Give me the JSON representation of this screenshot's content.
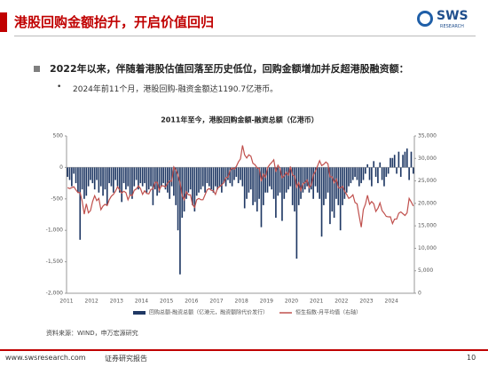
{
  "slide": {
    "title": "港股回购金额抬升，开启价值回归",
    "logo": "SWS",
    "logo_sub": "RESEARCH",
    "bullet": "2022年以来，伴随着港股估值回落至历史低位，回购金额增加并反超港股融资额：",
    "sub_bullet": "2024年前11个月，港股回购-融资金额达1190.7亿港币。",
    "source": "资料来源：WIND，申万宏源研究",
    "footer_url": "www.swsresearch.com",
    "footer_label": "证券研究报告",
    "page": "10"
  },
  "chart_data": {
    "type": "bar_line",
    "title": "2011年至今，港股回购金额-融资总额（亿港币）",
    "categories": [
      "2011",
      null,
      null,
      null,
      null,
      null,
      null,
      null,
      null,
      null,
      null,
      null,
      "2012",
      null,
      null,
      null,
      null,
      null,
      null,
      null,
      null,
      null,
      null,
      null,
      "2013",
      null,
      null,
      null,
      null,
      null,
      null,
      null,
      null,
      null,
      null,
      null,
      "2014",
      null,
      null,
      null,
      null,
      null,
      null,
      null,
      null,
      null,
      null,
      null,
      "2015",
      null,
      null,
      null,
      null,
      null,
      null,
      null,
      null,
      null,
      null,
      null,
      "2016",
      null,
      null,
      null,
      null,
      null,
      null,
      null,
      null,
      null,
      null,
      null,
      "2017",
      null,
      null,
      null,
      null,
      null,
      null,
      null,
      null,
      null,
      null,
      null,
      "2018",
      null,
      null,
      null,
      null,
      null,
      null,
      null,
      null,
      null,
      null,
      null,
      "2019",
      null,
      null,
      null,
      null,
      null,
      null,
      null,
      null,
      null,
      null,
      null,
      "2020",
      null,
      null,
      null,
      null,
      null,
      null,
      null,
      null,
      null,
      null,
      null,
      "2021",
      null,
      null,
      null,
      null,
      null,
      null,
      null,
      null,
      null,
      null,
      null,
      "2022",
      null,
      null,
      null,
      null,
      null,
      null,
      null,
      null,
      null,
      null,
      null,
      "2023",
      null,
      null,
      null,
      null,
      null,
      null,
      null,
      null,
      null,
      null,
      null,
      "2024",
      null,
      null,
      null,
      null,
      null,
      null,
      null,
      null,
      null,
      null
    ],
    "series": [
      {
        "name": "回购总额-融资总额（亿港元，融资额除代价发行）",
        "type": "bar",
        "color": "#1f3864",
        "values": [
          -150,
          -200,
          -300,
          -100,
          -250,
          -400,
          -1150,
          -350,
          -500,
          -450,
          -300,
          -200,
          -250,
          -350,
          -200,
          -400,
          -300,
          -450,
          -350,
          -600,
          -250,
          -300,
          -400,
          -200,
          -300,
          -400,
          -550,
          -250,
          -350,
          -300,
          -450,
          -500,
          -300,
          -200,
          -350,
          -250,
          -300,
          -250,
          -400,
          -350,
          -300,
          -600,
          -350,
          -450,
          -400,
          -300,
          -250,
          -350,
          -400,
          -500,
          -300,
          -450,
          -600,
          -1000,
          -1700,
          -800,
          -700,
          -500,
          -400,
          -350,
          -600,
          -700,
          -450,
          -400,
          -350,
          -300,
          -400,
          -250,
          -300,
          -350,
          -400,
          -300,
          -350,
          -300,
          -400,
          -250,
          -300,
          -200,
          -250,
          -300,
          -200,
          -150,
          -250,
          -200,
          -300,
          -650,
          -500,
          -400,
          -350,
          -600,
          -550,
          -700,
          -500,
          -950,
          -600,
          -400,
          -400,
          -300,
          -350,
          -500,
          -800,
          -450,
          -400,
          -850,
          -500,
          -400,
          -350,
          -300,
          -600,
          -700,
          -1450,
          -600,
          -500,
          -400,
          -350,
          -300,
          -400,
          -350,
          -500,
          -300,
          -400,
          -500,
          -1100,
          -600,
          -500,
          -400,
          -900,
          -700,
          -800,
          -500,
          -600,
          -1000,
          -600,
          -500,
          -400,
          -300,
          -250,
          -200,
          -150,
          -200,
          -300,
          -250,
          -200,
          -100,
          50,
          -200,
          -300,
          100,
          -150,
          -250,
          80,
          -200,
          -300,
          -150,
          -100,
          150,
          150,
          200,
          -100,
          250,
          -150,
          200,
          250,
          300,
          -200,
          250,
          -100
        ]
      },
      {
        "name": "恒生指数-月平均值（右轴）",
        "type": "line",
        "axis": "y2",
        "color": "#c0504d",
        "values": [
          23500,
          23300,
          23500,
          23700,
          23000,
          22400,
          22400,
          20500,
          17600,
          19900,
          17900,
          18400,
          20400,
          21700,
          20600,
          21100,
          18600,
          19400,
          19800,
          19500,
          20800,
          21600,
          22000,
          22700,
          23700,
          23000,
          22300,
          22700,
          22400,
          20800,
          21900,
          21700,
          22900,
          23200,
          23900,
          23300,
          22000,
          22800,
          22200,
          22100,
          23100,
          23200,
          24700,
          24700,
          22900,
          23900,
          23900,
          23600,
          24500,
          25000,
          24900,
          28100,
          27400,
          26300,
          24600,
          21700,
          20800,
          22600,
          21900,
          21900,
          19700,
          19100,
          20800,
          21100,
          20800,
          20800,
          21900,
          23000,
          23300,
          22900,
          22800,
          22000,
          23400,
          23700,
          24100,
          24600,
          25700,
          25800,
          27300,
          27900,
          27600,
          28200,
          29200,
          29900,
          32900,
          30800,
          30100,
          30800,
          30500,
          28900,
          28600,
          27900,
          27800,
          24900,
          26500,
          25800,
          27900,
          28600,
          29100,
          29700,
          27000,
          28500,
          27800,
          25700,
          26100,
          26900,
          26300,
          28200,
          26300,
          26100,
          23600,
          24600,
          22900,
          24400,
          24600,
          25200,
          23500,
          24100,
          26300,
          27200,
          28300,
          29500,
          28400,
          28700,
          29200,
          28800,
          25900,
          25900,
          24600,
          25400,
          23500,
          23400,
          23800,
          22700,
          22000,
          21100,
          21400,
          21900,
          20200,
          19900,
          17200,
          14700,
          18600,
          19800,
          21800,
          19800,
          20400,
          19900,
          18200,
          18900,
          20100,
          18400,
          17800,
          17100,
          17000,
          17000,
          15500,
          16500,
          16500,
          17800,
          18100,
          17700,
          17300,
          17900,
          21100,
          20300,
          19400
        ]
      }
    ],
    "ylim": [
      -2000,
      500
    ],
    "yticks": [
      {
        "value": -2000,
        "label": "-2,000"
      },
      {
        "value": -1500,
        "label": "-1,500"
      },
      {
        "value": -1000,
        "label": "-1,000"
      },
      -500,
      0,
      500
    ],
    "y2lim": [
      0,
      35000
    ],
    "y2ticks": [
      0,
      {
        "value": 5000,
        "label": "5,000"
      },
      {
        "value": 10000,
        "label": "10,000"
      },
      {
        "value": 15000,
        "label": "15,000"
      },
      {
        "value": 20000,
        "label": "20,000"
      },
      {
        "value": 25000,
        "label": "25,000"
      },
      {
        "value": 30000,
        "label": "30,000"
      },
      {
        "value": 35000,
        "label": "35,000"
      }
    ],
    "grid": false
  }
}
